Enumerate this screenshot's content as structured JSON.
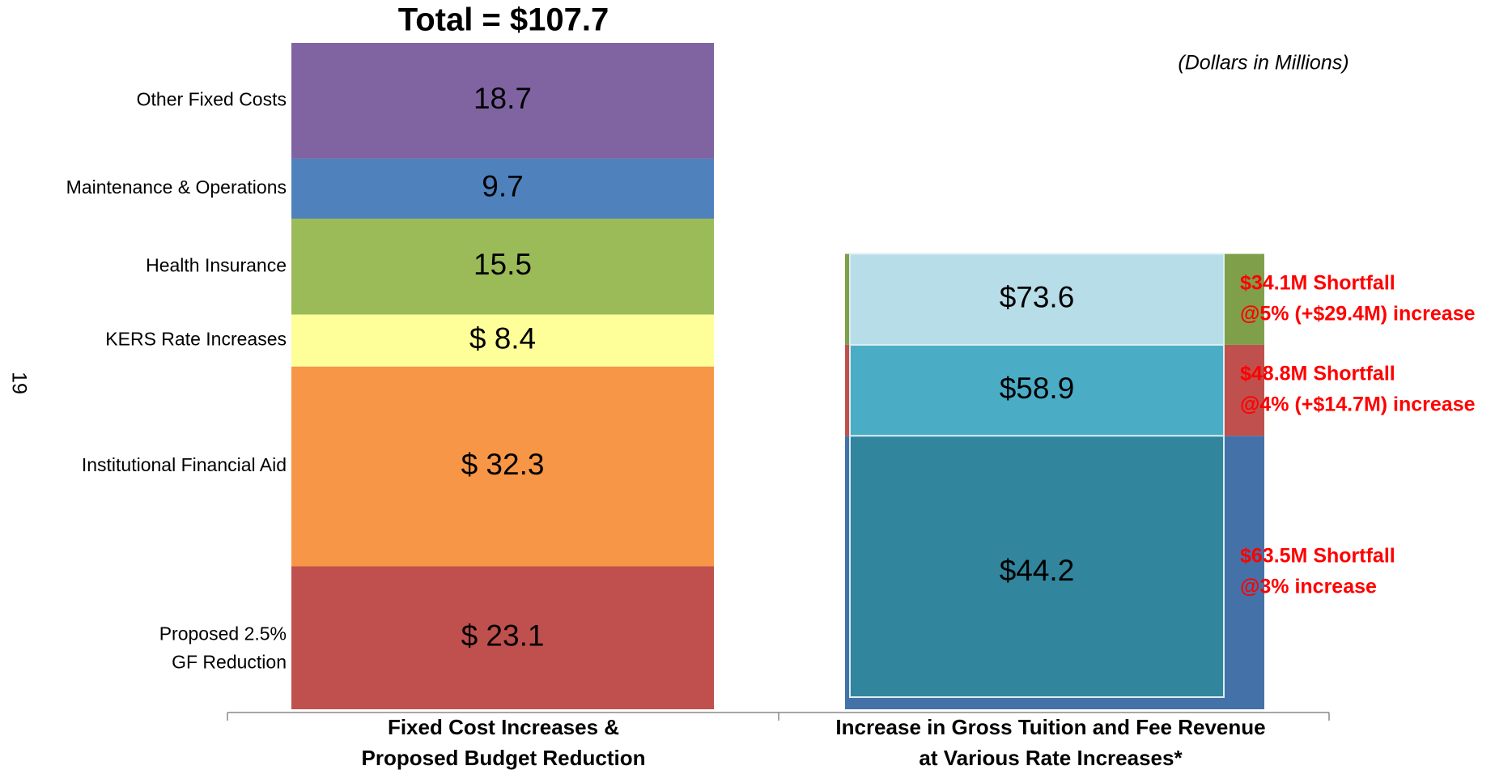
{
  "chart_data": {
    "type": "budget_comparison",
    "title": "Total = $107.7",
    "note": "(Dollars in Millions)",
    "page_number": "19",
    "ylim": [
      0,
      107.7
    ],
    "categories": [
      [
        "Fixed Cost Increases &",
        "Proposed Budget Reduction"
      ],
      [
        "Increase in Gross Tuition and Fee Revenue",
        "at Various Rate Increases*"
      ]
    ],
    "segments": [
      {
        "name": [
          "Proposed 2.5%",
          "GF Reduction"
        ],
        "value": 23.1,
        "value_label": "$ 23.1",
        "color": "#c0504d"
      },
      {
        "name": [
          "Institutional Financial Aid"
        ],
        "value": 32.3,
        "value_label": "$ 32.3",
        "color": "#f79646"
      },
      {
        "name": [
          "KERS Rate Increases"
        ],
        "value": 8.4,
        "value_label": "$ 8.4",
        "color": "#ffff99"
      },
      {
        "name": [
          "Health Insurance"
        ],
        "value": 15.5,
        "value_label": "15.5",
        "color": "#9bbb59"
      },
      {
        "name": [
          "Maintenance & Operations"
        ],
        "value": 9.7,
        "value_label": "9.7",
        "color": "#4f81bd"
      },
      {
        "name": [
          "Other Fixed Costs"
        ],
        "value": 18.7,
        "value_label": "18.7",
        "color": "#8064a2"
      }
    ],
    "revenue": [
      {
        "value": 73.6,
        "value_label": "$73.6",
        "color": "#b7dde8"
      },
      {
        "value": 58.9,
        "value_label": "$58.9",
        "color": "#4bacc6"
      },
      {
        "value": 44.2,
        "value_label": "$44.2",
        "color": "#31859c"
      }
    ],
    "strips": [
      {
        "value": 44.2,
        "color": "#4472a8",
        "annotation": [
          "$63.5M Shortfall",
          "@3% increase"
        ]
      },
      {
        "value": 14.7,
        "color": "#c0504d",
        "annotation": [
          "$48.8M Shortfall",
          "@4% (+$14.7M) increase"
        ]
      },
      {
        "value": 14.7,
        "color": "#7f9f4a",
        "annotation": [
          "$34.1M Shortfall",
          "@5% (+$29.4M) increase"
        ]
      }
    ]
  }
}
